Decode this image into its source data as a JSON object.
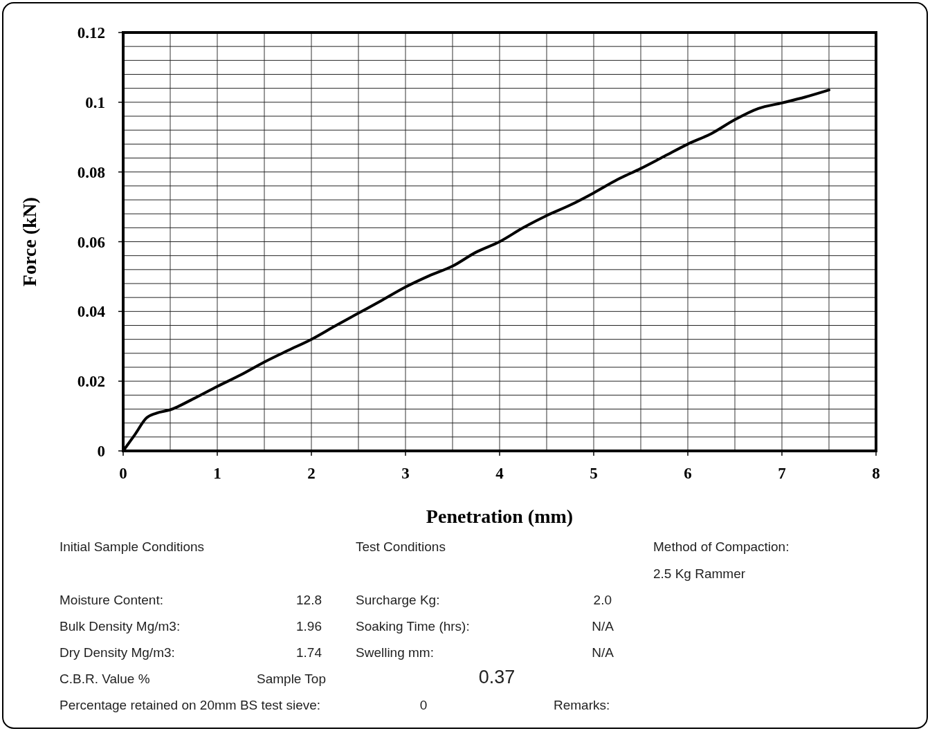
{
  "chart_data": {
    "type": "line",
    "xlabel": "Penetration (mm)",
    "ylabel": "Force (kN)",
    "x": [
      0,
      0.12,
      0.25,
      0.35,
      0.5,
      0.75,
      1,
      1.25,
      1.5,
      1.75,
      2,
      2.25,
      2.5,
      2.75,
      3,
      3.25,
      3.5,
      3.75,
      4,
      4.25,
      4.5,
      4.75,
      5,
      5.25,
      5.5,
      5.75,
      6,
      6.25,
      6.5,
      6.75,
      7,
      7.25,
      7.5
    ],
    "series": [
      {
        "color": "#000000",
        "values": [
          0,
          0.0045,
          0.0095,
          0.0108,
          0.0118,
          0.015,
          0.0185,
          0.0218,
          0.0255,
          0.0288,
          0.032,
          0.0358,
          0.0395,
          0.0432,
          0.047,
          0.0502,
          0.053,
          0.057,
          0.06,
          0.064,
          0.0675,
          0.0705,
          0.074,
          0.0778,
          0.081,
          0.0845,
          0.088,
          0.091,
          0.095,
          0.0982,
          0.0998,
          0.1015,
          0.1035
        ]
      }
    ],
    "xlim": [
      0,
      8
    ],
    "ylim": [
      0,
      0.12
    ],
    "xticks": [
      0,
      {
        "value": 0.5,
        "label": null
      },
      1,
      {
        "value": 1.5,
        "label": null
      },
      2,
      {
        "value": 2.5,
        "label": null
      },
      3,
      {
        "value": 3.5,
        "label": null
      },
      4,
      {
        "value": 4.5,
        "label": null
      },
      5,
      {
        "value": 5.5,
        "label": null
      },
      6,
      {
        "value": 6.5,
        "label": null
      },
      7,
      {
        "value": 7.5,
        "label": null
      },
      8
    ],
    "yticks": [
      0,
      {
        "value": 0.004,
        "label": null
      },
      {
        "value": 0.008,
        "label": null
      },
      {
        "value": 0.012,
        "label": null
      },
      {
        "value": 0.016,
        "label": null
      },
      0.02,
      {
        "value": 0.024,
        "label": null
      },
      {
        "value": 0.028,
        "label": null
      },
      {
        "value": 0.032,
        "label": null
      },
      {
        "value": 0.036,
        "label": null
      },
      0.04,
      {
        "value": 0.044,
        "label": null
      },
      {
        "value": 0.048,
        "label": null
      },
      {
        "value": 0.052,
        "label": null
      },
      {
        "value": 0.056,
        "label": null
      },
      0.06,
      {
        "value": 0.064,
        "label": null
      },
      {
        "value": 0.068,
        "label": null
      },
      {
        "value": 0.072,
        "label": null
      },
      {
        "value": 0.076,
        "label": null
      },
      0.08,
      {
        "value": 0.084,
        "label": null
      },
      {
        "value": 0.088,
        "label": null
      },
      {
        "value": 0.092,
        "label": null
      },
      {
        "value": 0.096,
        "label": null
      },
      0.1,
      {
        "value": 0.104,
        "label": null
      },
      {
        "value": 0.108,
        "label": null
      },
      {
        "value": 0.112,
        "label": null
      },
      {
        "value": 0.116,
        "label": null
      },
      0.12
    ],
    "grid": true,
    "marker": "none",
    "line_style": "solid",
    "annotations": [
      "Initial Sample Conditions",
      "Test Conditions",
      "Method of Compaction:",
      "2.5 Kg Rammer",
      "Moisture Content:",
      "12.8",
      "Surcharge Kg:",
      "2.0",
      "Bulk Density Mg/m3:",
      "1.96",
      "Soaking Time (hrs):",
      "N/A",
      "Dry Density Mg/m3:",
      "1.74",
      "Swelling mm:",
      "N/A",
      "C.B.R. Value %",
      "Sample Top",
      "0.37",
      "Percentage retained on 20mm BS test sieve:",
      "0",
      "Remarks:"
    ]
  }
}
